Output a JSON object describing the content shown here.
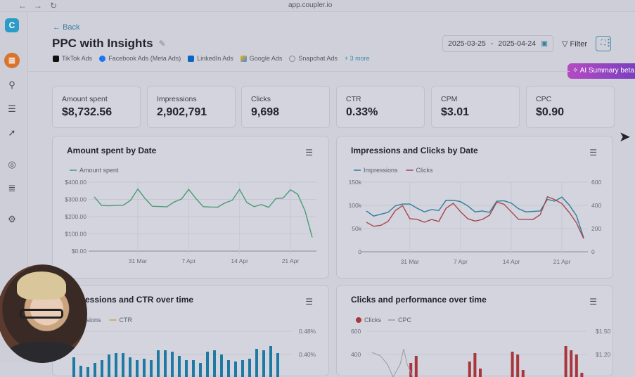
{
  "browser": {
    "url": "app.coupler.io"
  },
  "sidebar": {
    "icons": [
      "coupler-logo",
      "account-avatar",
      "connector-icon",
      "database-icon",
      "rocket-icon",
      "compass-icon",
      "checklist-icon",
      "gear-icon"
    ]
  },
  "header": {
    "back": "Back",
    "title": "PPC with Insights",
    "sources": [
      {
        "label": "TikTok Ads",
        "color": "#111111"
      },
      {
        "label": "Facebook Ads (Meta Ads)",
        "color": "#1877f2"
      },
      {
        "label": "LinkedIn Ads",
        "color": "#0a66c2"
      },
      {
        "label": "Google Ads",
        "color": "#f4b400"
      },
      {
        "label": "Snapchat Ads",
        "color": "#888888"
      }
    ],
    "more": "+ 3 more",
    "date_from": "2025-03-25",
    "date_sep": "-",
    "date_to": "2025-04-24",
    "filter": "Filter",
    "ai_summary": "AI Summary beta"
  },
  "kpis": [
    {
      "label": "Amount spent",
      "value": "$8,732.56"
    },
    {
      "label": "Impressions",
      "value": "2,902,791"
    },
    {
      "label": "Clicks",
      "value": "9,698"
    },
    {
      "label": "CTR",
      "value": "0.33%"
    },
    {
      "label": "CPM",
      "value": "$3.01"
    },
    {
      "label": "CPC",
      "value": "$0.90"
    }
  ],
  "chart_data": [
    {
      "type": "line",
      "title": "Amount spent by Date",
      "x_ticks": [
        "31 Mar",
        "7 Apr",
        "14 Apr",
        "21 Apr"
      ],
      "x_start": "2025-03-25",
      "x_end": "2025-04-24",
      "y_ticks": [
        "$400.00",
        "$300.00",
        "$200.00",
        "$100.00",
        "$0.00"
      ],
      "ylim": [
        0,
        400
      ],
      "grid": true,
      "legend": "top-left",
      "series": [
        {
          "name": "Amount spent",
          "color": "#4a9b74",
          "values": [
            315,
            265,
            263,
            265,
            266,
            295,
            360,
            305,
            260,
            259,
            257,
            285,
            302,
            358,
            305,
            258,
            256,
            255,
            280,
            295,
            358,
            282,
            258,
            270,
            254,
            305,
            308,
            356,
            330,
            235,
            80
          ]
        }
      ]
    },
    {
      "type": "line",
      "title": "Impressions and Clicks by Date",
      "x_ticks": [
        "31 Mar",
        "7 Apr",
        "14 Apr",
        "21 Apr"
      ],
      "x_start": "2025-03-25",
      "x_end": "2025-04-24",
      "y_ticks": [
        "150k",
        "100k",
        "50k",
        "0"
      ],
      "y2_ticks": [
        "600",
        "400",
        "200",
        "0"
      ],
      "ylim": [
        0,
        150000
      ],
      "y2lim": [
        0,
        600
      ],
      "grid": true,
      "legend": "top-left",
      "series": [
        {
          "name": "Impressions",
          "color": "#2f7c9e",
          "axis": "left",
          "values": [
            88000,
            77000,
            81000,
            85000,
            99000,
            103000,
            103000,
            94000,
            86000,
            91000,
            89000,
            111000,
            111000,
            108000,
            99000,
            86000,
            88000,
            85000,
            109000,
            110000,
            105000,
            93000,
            86000,
            87000,
            88000,
            113000,
            109000,
            118000,
            101000,
            78000,
            30000
          ]
        },
        {
          "name": "Clicks",
          "color": "#a8454e",
          "axis": "right",
          "values": [
            255,
            220,
            228,
            262,
            355,
            398,
            285,
            280,
            255,
            278,
            262,
            375,
            418,
            345,
            285,
            265,
            278,
            315,
            428,
            410,
            345,
            280,
            280,
            278,
            320,
            475,
            450,
            415,
            340,
            250,
            115
          ]
        }
      ]
    },
    {
      "type": "bar",
      "title": "Impressions and CTR over time",
      "legend": "top-left",
      "y2_ticks": [
        "0.48%",
        "0.40%"
      ],
      "series": [
        {
          "name": "Impressions",
          "color": "#1f7aa3",
          "values": [
            70,
            40,
            35,
            50,
            60,
            80,
            85,
            85,
            70,
            60,
            65,
            60,
            95,
            95,
            90,
            75,
            60,
            60,
            50,
            90,
            95,
            80,
            60,
            55,
            60,
            65,
            100,
            95,
            110,
            85
          ]
        },
        {
          "name": "CTR",
          "color": "#c9a544"
        }
      ]
    },
    {
      "type": "bar",
      "title": "Clicks and performance over time",
      "legend": "top-left",
      "y_ticks": [
        "600",
        "400"
      ],
      "y2_ticks": [
        "$1.50",
        "$1.20"
      ],
      "series": [
        {
          "name": "Clicks",
          "color": "#a8363b",
          "values": [
            0,
            0,
            0,
            0,
            0,
            0,
            0,
            350,
            400,
            250,
            0,
            0,
            0,
            0,
            0,
            0,
            0,
            0,
            360,
            420,
            310,
            0,
            0,
            0,
            0,
            0,
            430,
            410,
            300,
            0,
            0,
            0,
            0,
            0,
            0,
            0,
            470,
            440,
            410,
            280
          ]
        },
        {
          "name": "CPC",
          "color": "#9a9ca6"
        }
      ]
    }
  ]
}
